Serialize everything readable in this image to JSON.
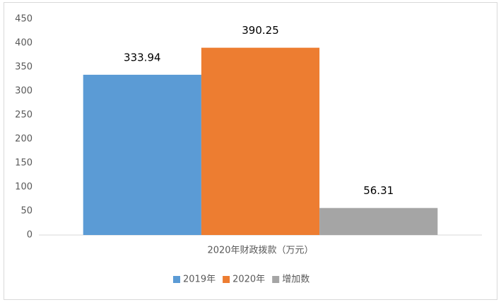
{
  "chart_data": {
    "type": "bar",
    "categories": [
      "2020年财政拨款（万元）"
    ],
    "series": [
      {
        "name": "2019年",
        "color": "#5b9bd5",
        "values": [
          333.94
        ]
      },
      {
        "name": "2020年",
        "color": "#ed7d31",
        "values": [
          390.25
        ]
      },
      {
        "name": "增加数",
        "color": "#a5a5a5",
        "values": [
          56.31
        ]
      }
    ],
    "ylim": [
      0,
      450
    ],
    "yticks": [
      0,
      50,
      100,
      150,
      200,
      250,
      300,
      350,
      400,
      450
    ],
    "grid": false,
    "legend": "bottom"
  }
}
